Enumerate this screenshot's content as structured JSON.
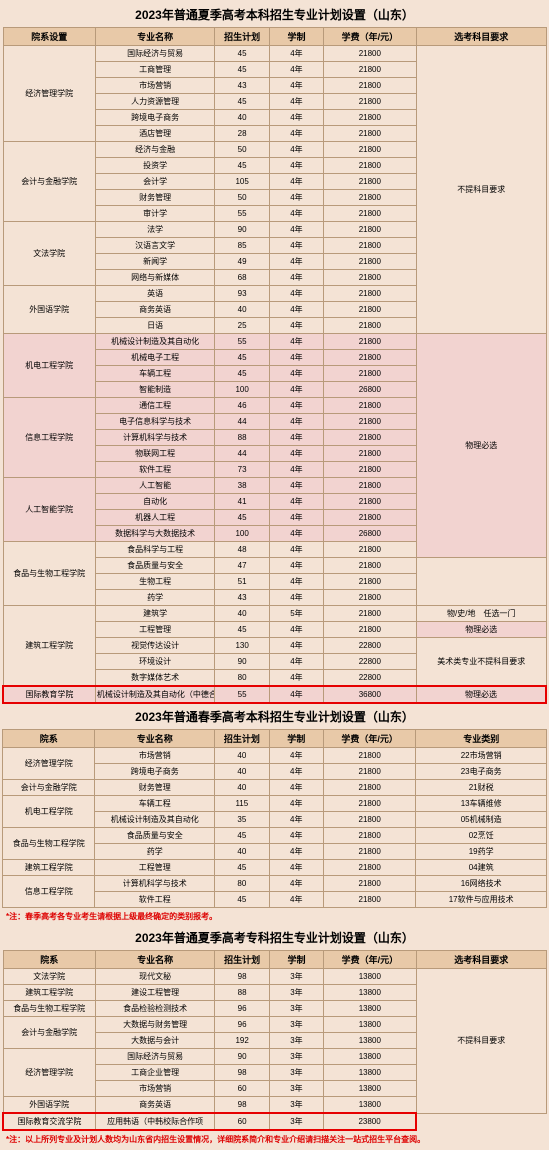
{
  "table1": {
    "title": "2023年普通夏季高考本科招生专业计划设置（山东）",
    "headers": [
      "院系设置",
      "专业名称",
      "招生计划",
      "学制",
      "学费（年/元）",
      "选考科目要求"
    ],
    "col_widths": [
      "17%",
      "22%",
      "10%",
      "10%",
      "17%",
      "24%"
    ],
    "groups": [
      {
        "dept": "经济管理学院",
        "req": "不提科目要求",
        "req_rows": 18,
        "pink": false,
        "rows": [
          [
            "国际经济与贸易",
            "45",
            "4年",
            "21800"
          ],
          [
            "工商管理",
            "45",
            "4年",
            "21800"
          ],
          [
            "市场营销",
            "43",
            "4年",
            "21800"
          ],
          [
            "人力资源管理",
            "45",
            "4年",
            "21800"
          ],
          [
            "跨境电子商务",
            "40",
            "4年",
            "21800"
          ],
          [
            "酒店管理",
            "28",
            "4年",
            "21800"
          ]
        ]
      },
      {
        "dept": "会计与金融学院",
        "pink": false,
        "rows": [
          [
            "经济与金融",
            "50",
            "4年",
            "21800"
          ],
          [
            "投资学",
            "45",
            "4年",
            "21800"
          ],
          [
            "会计学",
            "105",
            "4年",
            "21800"
          ],
          [
            "财务管理",
            "50",
            "4年",
            "21800"
          ],
          [
            "审计学",
            "55",
            "4年",
            "21800"
          ]
        ]
      },
      {
        "dept": "文法学院",
        "pink": false,
        "rows": [
          [
            "法学",
            "90",
            "4年",
            "21800"
          ],
          [
            "汉语言文学",
            "85",
            "4年",
            "21800"
          ],
          [
            "新闻学",
            "49",
            "4年",
            "21800"
          ],
          [
            "网络与新媒体",
            "68",
            "4年",
            "21800"
          ]
        ]
      },
      {
        "dept": "外国语学院",
        "pink": false,
        "rows": [
          [
            "英语",
            "93",
            "4年",
            "21800"
          ],
          [
            "商务英语",
            "40",
            "4年",
            "21800"
          ],
          [
            "日语",
            "25",
            "4年",
            "21800"
          ]
        ]
      },
      {
        "dept": "机电工程学院",
        "req": "物理必选",
        "req_rows": 14,
        "pink": true,
        "rows": [
          [
            "机械设计制造及其自动化",
            "55",
            "4年",
            "21800"
          ],
          [
            "机械电子工程",
            "45",
            "4年",
            "21800"
          ],
          [
            "车辆工程",
            "45",
            "4年",
            "21800"
          ],
          [
            "智能制造",
            "100",
            "4年",
            "26800"
          ]
        ]
      },
      {
        "dept": "信息工程学院",
        "pink": true,
        "rows": [
          [
            "通信工程",
            "46",
            "4年",
            "21800"
          ],
          [
            "电子信息科学与技术",
            "44",
            "4年",
            "21800"
          ],
          [
            "计算机科学与技术",
            "88",
            "4年",
            "21800"
          ],
          [
            "物联网工程",
            "44",
            "4年",
            "21800"
          ],
          [
            "软件工程",
            "73",
            "4年",
            "21800"
          ]
        ]
      },
      {
        "dept": "人工智能学院",
        "pink": true,
        "rows": [
          [
            "人工智能",
            "38",
            "4年",
            "21800"
          ],
          [
            "自动化",
            "41",
            "4年",
            "21800"
          ],
          [
            "机器人工程",
            "45",
            "4年",
            "21800"
          ],
          [
            "数据科学与大数据技术",
            "100",
            "4年",
            "26800"
          ]
        ]
      },
      {
        "dept": "食品与生物工程学院",
        "req": "物/化/生　任选一门",
        "req_rows": 4,
        "pink": false,
        "rows": [
          [
            "食品科学与工程",
            "48",
            "4年",
            "21800"
          ],
          [
            "食品质量与安全",
            "47",
            "4年",
            "21800"
          ],
          [
            "生物工程",
            "51",
            "4年",
            "21800"
          ],
          [
            "药学",
            "43",
            "4年",
            "21800"
          ]
        ]
      },
      {
        "dept": "建筑工程学院",
        "multi_req": true,
        "pink": false,
        "rows": [
          [
            "建筑学",
            "40",
            "5年",
            "21800",
            "物/史/地　任选一门",
            1,
            false
          ],
          [
            "工程管理",
            "45",
            "4年",
            "21800",
            "物理必选",
            1,
            true
          ],
          [
            "视觉传达设计",
            "130",
            "4年",
            "22800",
            "美术类专业不提科目要求",
            3,
            false
          ],
          [
            "环境设计",
            "90",
            "4年",
            "22800",
            null,
            null,
            false
          ],
          [
            "数字媒体艺术",
            "80",
            "4年",
            "22800",
            null,
            null,
            false
          ]
        ]
      },
      {
        "dept": "国际教育学院",
        "highlight": true,
        "pink": true,
        "rows": [
          [
            "机械设计制造及其自动化（中德合作办学）",
            "55",
            "4年",
            "36800",
            "物理必选",
            1,
            true
          ]
        ]
      }
    ]
  },
  "table2": {
    "title": "2023年普通春季高考本科招生专业计划设置（山东）",
    "headers": [
      "院系",
      "专业名称",
      "招生计划",
      "学制",
      "学费（年/元）",
      "专业类别"
    ],
    "col_widths": [
      "17%",
      "22%",
      "10%",
      "10%",
      "17%",
      "24%"
    ],
    "rows": [
      {
        "dept": "经济管理学院",
        "span": 2,
        "cells": [
          "市场营销",
          "40",
          "4年",
          "21800",
          "22市场营销"
        ]
      },
      {
        "cells": [
          "跨境电子商务",
          "40",
          "4年",
          "21800",
          "23电子商务"
        ]
      },
      {
        "dept": "会计与金融学院",
        "span": 1,
        "cells": [
          "财务管理",
          "40",
          "4年",
          "21800",
          "21财税"
        ]
      },
      {
        "dept": "机电工程学院",
        "span": 2,
        "cells": [
          "车辆工程",
          "115",
          "4年",
          "21800",
          "13车辆维修"
        ]
      },
      {
        "cells": [
          "机械设计制造及其自动化",
          "35",
          "4年",
          "21800",
          "05机械制造"
        ]
      },
      {
        "dept": "食品与生物工程学院",
        "span": 2,
        "cells": [
          "食品质量与安全",
          "45",
          "4年",
          "21800",
          "02烹饪"
        ]
      },
      {
        "cells": [
          "药学",
          "40",
          "4年",
          "21800",
          "19药学"
        ]
      },
      {
        "dept": "建筑工程学院",
        "span": 1,
        "cells": [
          "工程管理",
          "45",
          "4年",
          "21800",
          "04建筑"
        ]
      },
      {
        "dept": "信息工程学院",
        "span": 2,
        "cells": [
          "计算机科学与技术",
          "80",
          "4年",
          "21800",
          "16网络技术"
        ]
      },
      {
        "cells": [
          "软件工程",
          "45",
          "4年",
          "21800",
          "17软件与应用技术"
        ]
      }
    ],
    "note": "*注：春季高考各专业考生请根据上级最终确定的类别报考。"
  },
  "table3": {
    "title": "2023年普通夏季高考专科招生专业计划设置（山东）",
    "headers": [
      "院系",
      "专业名称",
      "招生计划",
      "学制",
      "学费（年/元）",
      "选考科目要求"
    ],
    "col_widths": [
      "17%",
      "22%",
      "10%",
      "10%",
      "17%",
      "24%"
    ],
    "rows": [
      {
        "dept": "文法学院",
        "cells": [
          "现代文秘",
          "98",
          "3年",
          "13800"
        ],
        "req": "不提科目要求",
        "req_rows": 9
      },
      {
        "dept": "建筑工程学院",
        "cells": [
          "建设工程管理",
          "88",
          "3年",
          "13800"
        ]
      },
      {
        "dept": "食品与生物工程学院",
        "cells": [
          "食品检验检测技术",
          "96",
          "3年",
          "13800"
        ]
      },
      {
        "dept": "会计与金融学院",
        "span": 2,
        "cells": [
          "大数据与财务管理",
          "96",
          "3年",
          "13800"
        ]
      },
      {
        "cells": [
          "大数据与会计",
          "192",
          "3年",
          "13800"
        ]
      },
      {
        "dept": "经济管理学院",
        "span": 3,
        "cells": [
          "国际经济与贸易",
          "90",
          "3年",
          "13800"
        ]
      },
      {
        "cells": [
          "工商企业管理",
          "98",
          "3年",
          "13800"
        ]
      },
      {
        "cells": [
          "市场营销",
          "60",
          "3年",
          "13800"
        ]
      },
      {
        "dept": "外国语学院",
        "cells": [
          "商务英语",
          "98",
          "3年",
          "13800"
        ]
      },
      {
        "dept": "国际教育交流学院",
        "cells": [
          "应用韩语（中韩校际合作项",
          "60",
          "3年",
          "23800"
        ],
        "highlight": true
      }
    ],
    "note": "*注：以上所列专业及计划人数均为山东省内招生设置情况，详细院系简介和专业介绍请扫描关注一站式招生平台查阅。"
  }
}
